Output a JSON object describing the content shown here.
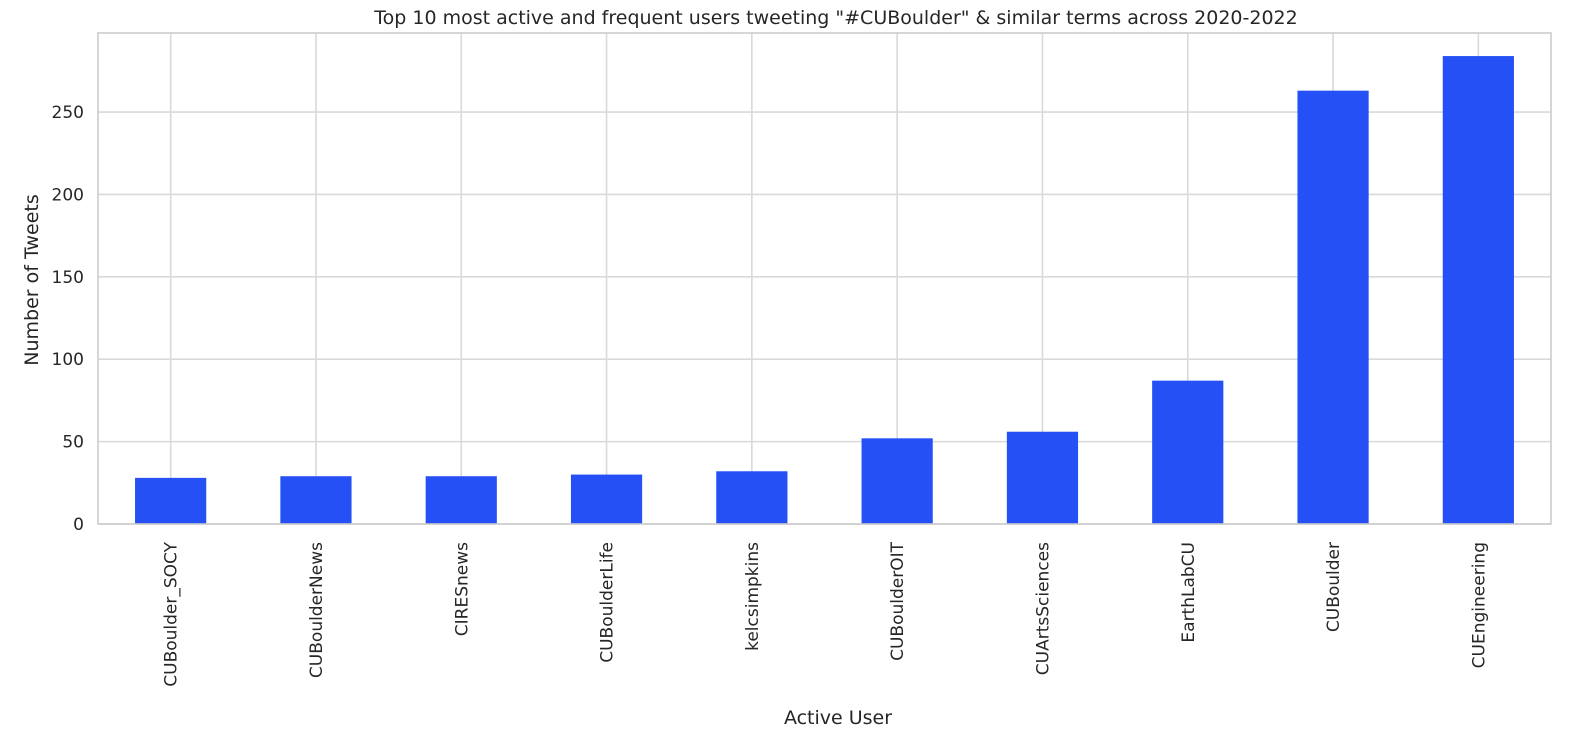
{
  "chart_data": {
    "type": "bar",
    "title": "Top 10 most active and frequent users tweeting \"#CUBoulder\" & similar terms across 2020-2022",
    "xlabel": "Active User",
    "ylabel": "Number of Tweets",
    "categories": [
      "CUBoulder_SOCY",
      "CUBoulderNews",
      "CIRESnews",
      "CUBoulderLife",
      "kelcsimpkins",
      "CUBoulderOIT",
      "CUArtsSciences",
      "EarthLabCU",
      "CUBoulder",
      "CUEngineering"
    ],
    "values": [
      28,
      29,
      29,
      30,
      32,
      52,
      56,
      87,
      263,
      284
    ],
    "yticks": [
      0,
      50,
      100,
      150,
      200,
      250
    ],
    "ylim": [
      0,
      298
    ],
    "bar_color": "#2450f5",
    "grid": true,
    "legend": "none"
  }
}
